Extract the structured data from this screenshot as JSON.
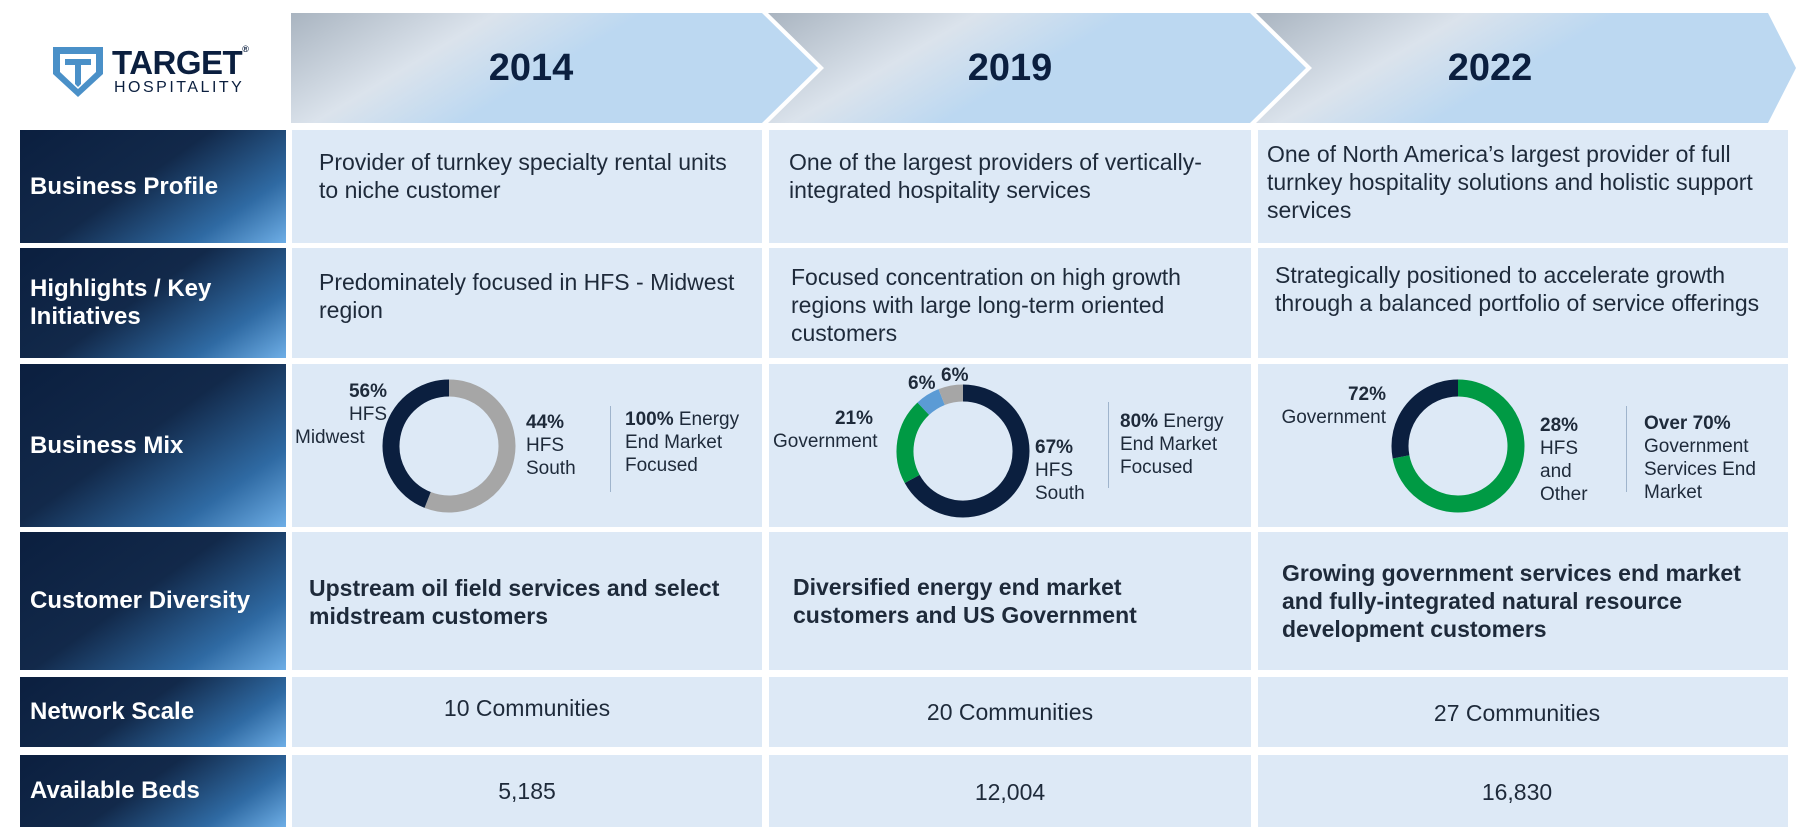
{
  "brand": {
    "name": "TARGET",
    "reg": "®",
    "sub": "HOSPITALITY",
    "colors": {
      "navy": "#0b1f3f",
      "teal_logo": "#4a90c8",
      "cell_bg": "#dde9f6",
      "green": "#009a44",
      "gray": "#a6a6a6",
      "light_blue": "#5b9bd5"
    }
  },
  "years": [
    "2014",
    "2019",
    "2022"
  ],
  "rows": {
    "business_profile": {
      "label": "Business Profile",
      "cells": [
        "Provider of turnkey specialty rental units to niche customer",
        "One of the largest providers of vertically-integrated hospitality services",
        "One of North America’s largest provider of full turnkey hospitality solutions and holistic support services"
      ]
    },
    "highlights": {
      "label": "Highlights / Key Initiatives",
      "cells": [
        "Predominately focused in HFS - Midwest region",
        "Focused concentration on high growth regions with large long-term oriented customers",
        "Strategically positioned to accelerate growth through a balanced portfolio of service offerings"
      ]
    },
    "business_mix": {
      "label": "Business Mix",
      "y2014": {
        "seg1_pct": "56%",
        "seg1_name_l1": "HFS",
        "seg1_name_l2": "Midwest",
        "seg2_pct": "44%",
        "seg2_name_l1": "HFS",
        "seg2_name_l2": "South",
        "note_bold": "100%",
        "note_rest": " Energy",
        "note_l2": "End Market",
        "note_l3": "Focused"
      },
      "y2019": {
        "gov_pct": "21%",
        "gov_name": "Government",
        "a_pct": "6%",
        "b_pct": "6%",
        "south_pct": "67%",
        "south_l1": "HFS",
        "south_l2": "South",
        "note_bold": "80%",
        "note_rest": " Energy",
        "note_l2": "End Market",
        "note_l3": "Focused"
      },
      "y2022": {
        "gov_pct": "72%",
        "gov_name": "Government",
        "other_pct": "28%",
        "other_l1": "HFS",
        "other_l2": "and",
        "other_l3": "Other",
        "note_bold": "Over 70%",
        "note_l2": "Government",
        "note_l3": "Services End",
        "note_l4": "Market"
      }
    },
    "customer_diversity": {
      "label": "Customer Diversity",
      "cells": [
        "Upstream oil field services and select midstream customers",
        "Diversified energy end market customers and US Government",
        "Growing government services end market and fully-integrated natural resource development customers"
      ]
    },
    "network_scale": {
      "label": "Network Scale",
      "cells": [
        "10 Communities",
        "20 Communities",
        "27 Communities"
      ]
    },
    "available_beds": {
      "label": "Available Beds",
      "cells": [
        "5,185",
        "12,004",
        "16,830"
      ]
    }
  },
  "chart_data": [
    {
      "type": "pie",
      "title": "2014",
      "labels": [
        "HFS Midwest",
        "HFS South"
      ],
      "values": [
        56,
        44
      ],
      "colors": [
        "#a6a6a6",
        "#0b1f3f"
      ]
    },
    {
      "type": "pie",
      "title": "2019",
      "labels": [
        "HFS South",
        "Government",
        "",
        ""
      ],
      "values": [
        67,
        21,
        6,
        6
      ],
      "colors": [
        "#0b1f3f",
        "#009a44",
        "#5b9bd5",
        "#a6a6a6"
      ]
    },
    {
      "type": "pie",
      "title": "2022",
      "labels": [
        "Government",
        "HFS and Other"
      ],
      "values": [
        72,
        28
      ],
      "colors": [
        "#009a44",
        "#0b1f3f"
      ]
    }
  ]
}
